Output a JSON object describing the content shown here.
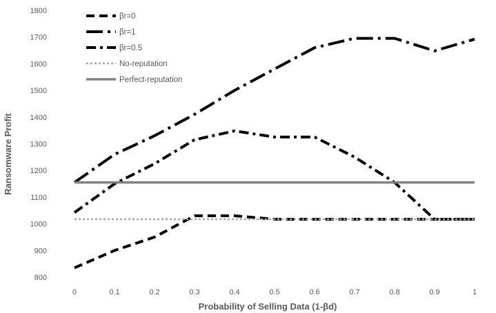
{
  "chart_data": {
    "type": "line",
    "xlabel": "Probability of Selling Data (1-βd)",
    "ylabel": "Ransomware Profit",
    "x": [
      0,
      0.1,
      0.2,
      0.3,
      0.4,
      0.5,
      0.6,
      0.7,
      0.8,
      0.9,
      1
    ],
    "x_tick_labels": [
      "0",
      "0.1",
      "0.2",
      "0.3",
      "0.4",
      "0.5",
      "0.6",
      "0.7",
      "0.8",
      "0.9",
      "1"
    ],
    "y_ticks": [
      800,
      900,
      1000,
      1100,
      1200,
      1300,
      1400,
      1500,
      1600,
      1700,
      1800
    ],
    "ylim": [
      800,
      1800
    ],
    "grid": false,
    "legend_position": "top-left",
    "series": [
      {
        "name": "βr=0",
        "style": "dashed",
        "color": "#000000",
        "values": [
          835,
          900,
          950,
          1030,
          1030,
          1017,
          1017,
          1017,
          1017,
          1017,
          1017
        ]
      },
      {
        "name": "βr=1",
        "style": "dash-dot",
        "color": "#000000",
        "values": [
          1155,
          1260,
          1330,
          1410,
          1500,
          1580,
          1660,
          1695,
          1695,
          1648,
          1692
        ]
      },
      {
        "name": "βr=0.5",
        "style": "dash-dot-dot",
        "color": "#000000",
        "values": [
          1042,
          1150,
          1225,
          1315,
          1348,
          1325,
          1325,
          1250,
          1155,
          1017,
          1017
        ]
      },
      {
        "name": "No-reputation",
        "style": "dotted",
        "color": "#a6a6a6",
        "values": [
          1017,
          1017,
          1017,
          1017,
          1017,
          1017,
          1017,
          1017,
          1017,
          1017,
          1017
        ]
      },
      {
        "name": "Perfect-reputation",
        "style": "solid",
        "color": "#808080",
        "values": [
          1155,
          1155,
          1155,
          1155,
          1155,
          1155,
          1155,
          1155,
          1155,
          1155,
          1155
        ]
      }
    ]
  }
}
